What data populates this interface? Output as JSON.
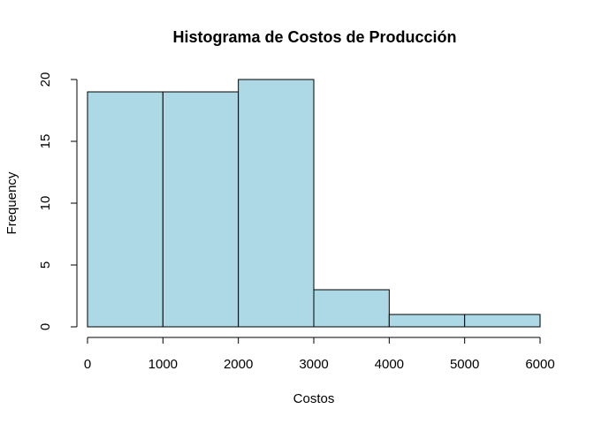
{
  "chart_data": {
    "type": "histogram",
    "title": "Histograma de Costos de Producción",
    "xlabel": "Costos",
    "ylabel": "Frequency",
    "bins": [
      {
        "start": 0,
        "end": 1000,
        "count": 19
      },
      {
        "start": 1000,
        "end": 2000,
        "count": 19
      },
      {
        "start": 2000,
        "end": 3000,
        "count": 20
      },
      {
        "start": 3000,
        "end": 4000,
        "count": 3
      },
      {
        "start": 4000,
        "end": 5000,
        "count": 1
      },
      {
        "start": 5000,
        "end": 6000,
        "count": 1
      }
    ],
    "xlim": [
      0,
      6000
    ],
    "ylim": [
      0,
      20
    ],
    "x_ticks": [
      0,
      1000,
      2000,
      3000,
      4000,
      5000,
      6000
    ],
    "y_ticks": [
      0,
      5,
      10,
      15,
      20
    ],
    "bar_fill": "#add8e6",
    "bar_stroke": "#000000",
    "grid": false,
    "legend": "none"
  }
}
